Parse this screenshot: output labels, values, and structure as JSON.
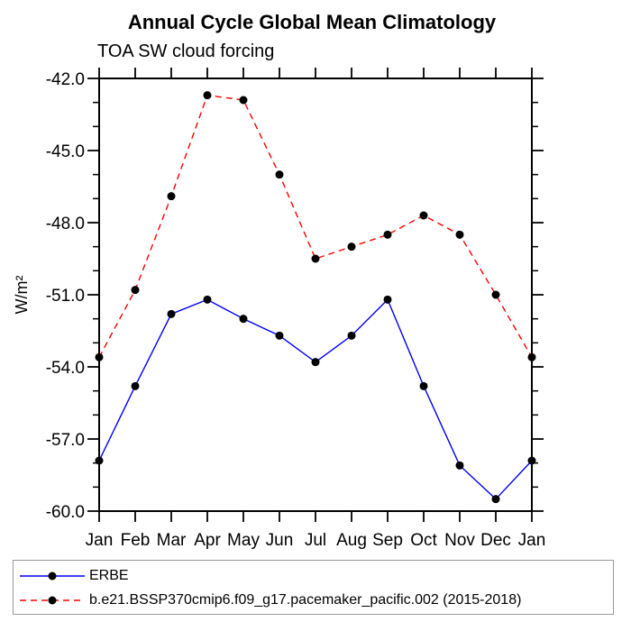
{
  "chart_data": {
    "type": "line",
    "title": "Annual Cycle Global Mean Climatology",
    "subtitle": "TOA SW cloud forcing",
    "ylabel": "W/m²",
    "categories": [
      "Jan",
      "Feb",
      "Mar",
      "Apr",
      "May",
      "Jun",
      "Jul",
      "Aug",
      "Sep",
      "Oct",
      "Nov",
      "Dec",
      "Jan"
    ],
    "ylim": [
      -60.0,
      -42.0
    ],
    "yticks_major": [
      -42.0,
      -45.0,
      -48.0,
      -51.0,
      -54.0,
      -57.0,
      -60.0
    ],
    "ytick_labels": [
      "-42.0",
      "-45.0",
      "-48.0",
      "-51.0",
      "-54.0",
      "-57.0",
      "-60.0"
    ],
    "minor_tick_step": 1.0,
    "grid": false,
    "legend_position": "bottom-box",
    "axis_color": "#000000",
    "series": [
      {
        "name": "ERBE",
        "color": "#0000ff",
        "line_style": "solid",
        "marker": "filled-circle",
        "marker_color": "#000000",
        "values": [
          -57.9,
          -54.8,
          -51.8,
          -51.2,
          -52.0,
          -52.7,
          -53.8,
          -52.7,
          -51.2,
          -54.8,
          -58.1,
          -59.5,
          -57.9
        ]
      },
      {
        "name": "b.e21.BSSP370cmip6.f09_g17.pacemaker_pacific.002 (2015-2018)",
        "color": "#ff0000",
        "line_style": "dashed",
        "marker": "filled-circle",
        "marker_color": "#000000",
        "values": [
          -53.6,
          -50.8,
          -46.9,
          -42.7,
          -42.9,
          -46.0,
          -49.5,
          -49.0,
          -48.5,
          -47.7,
          -48.5,
          -51.0,
          -53.6
        ]
      }
    ]
  }
}
